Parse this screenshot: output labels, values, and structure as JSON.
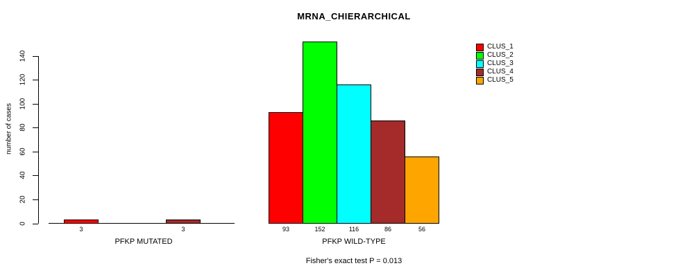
{
  "chart_data": {
    "type": "bar",
    "title": "MRNA_CHIERARCHICAL",
    "ylabel": "number of cases",
    "xlabel": "",
    "ylim": [
      0,
      140
    ],
    "yticks": [
      0,
      20,
      40,
      60,
      80,
      100,
      120,
      140
    ],
    "grid": false,
    "legend_position": "top-right",
    "series": [
      "CLUS_1",
      "CLUS_2",
      "CLUS_3",
      "CLUS_4",
      "CLUS_5"
    ],
    "series_colors": [
      "#FF0000",
      "#00FF00",
      "#00FFFF",
      "#A52A2A",
      "#FFA500"
    ],
    "groups": [
      {
        "label": "PFKP MUTATED",
        "values": [
          3,
          0,
          0,
          3,
          0
        ],
        "bar_labels": [
          "3",
          "",
          "",
          "3",
          ""
        ]
      },
      {
        "label": "PFKP WILD-TYPE",
        "values": [
          93,
          152,
          116,
          86,
          56
        ],
        "bar_labels": [
          "93",
          "152",
          "116",
          "86",
          "56"
        ]
      }
    ],
    "annotation": "Fisher's exact test P = 0.013",
    "axis_color": "#000000",
    "background_color": "#FFFFFF"
  }
}
